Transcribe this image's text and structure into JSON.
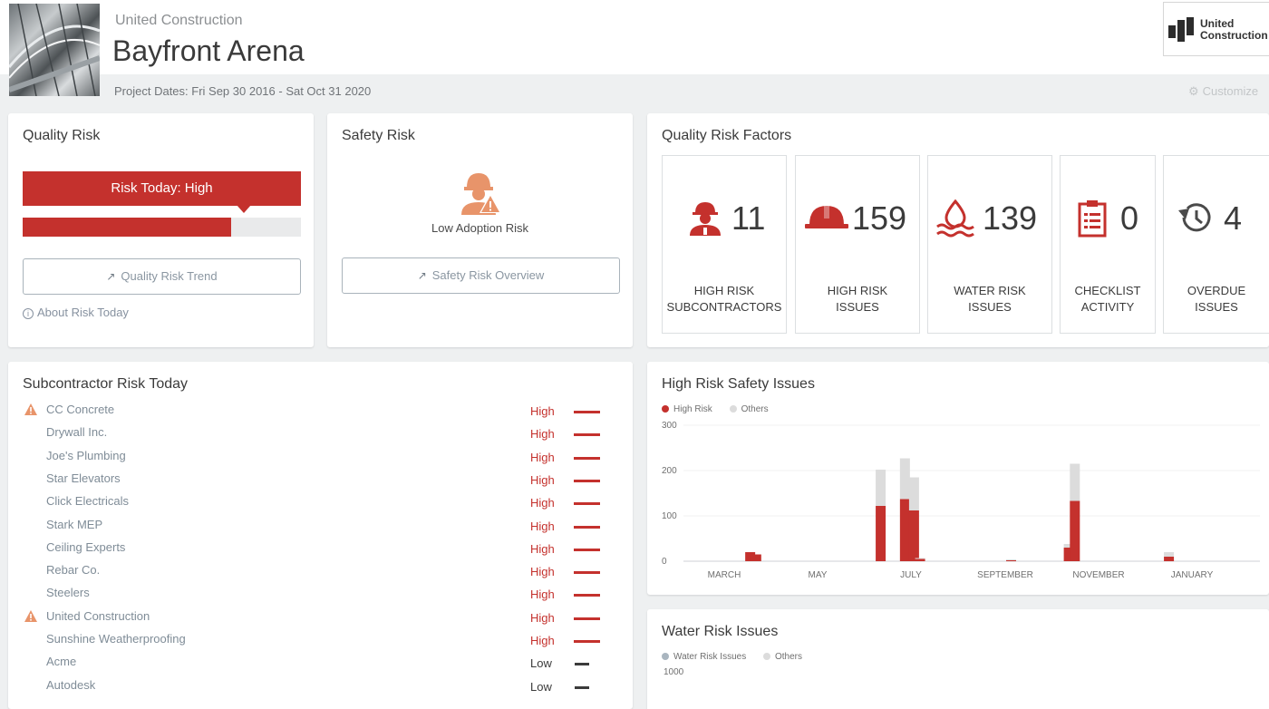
{
  "header": {
    "company": "United Construction",
    "project": "Bayfront Arena",
    "logo_text": "United\nConstruction",
    "project_dates": "Project Dates: Fri Sep 30 2016 - Sat Oct 31 2020",
    "customize_label": "Customize"
  },
  "quality_risk": {
    "title": "Quality Risk",
    "risk_today_label": "Risk Today: High",
    "risk_level_fraction": 0.8,
    "trend_button": "Quality Risk Trend",
    "about_link": "About Risk Today"
  },
  "safety_risk": {
    "title": "Safety Risk",
    "status": "Low Adoption Risk",
    "overview_button": "Safety Risk Overview"
  },
  "quality_factors": {
    "title": "Quality Risk Factors",
    "items": [
      {
        "value": "11",
        "label": "HIGH RISK\nSUBCONTRACTORS",
        "icon": "worker-icon"
      },
      {
        "value": "159",
        "label": "HIGH RISK\nISSUES",
        "icon": "hardhat-icon"
      },
      {
        "value": "139",
        "label": "WATER RISK\nISSUES",
        "icon": "water-drop-icon"
      },
      {
        "value": "0",
        "label": "CHECKLIST\nACTIVITY",
        "icon": "clipboard-icon"
      },
      {
        "value": "4",
        "label": "OVERDUE\nISSUES",
        "icon": "history-icon"
      }
    ]
  },
  "subcontractors": {
    "title": "Subcontractor Risk Today",
    "rows": [
      {
        "name": "CC Concrete",
        "level": "High",
        "warning": true
      },
      {
        "name": "Drywall Inc.",
        "level": "High",
        "warning": false
      },
      {
        "name": "Joe's Plumbing",
        "level": "High",
        "warning": false
      },
      {
        "name": "Star Elevators",
        "level": "High",
        "warning": false
      },
      {
        "name": "Click Electricals",
        "level": "High",
        "warning": false
      },
      {
        "name": "Stark MEP",
        "level": "High",
        "warning": false
      },
      {
        "name": "Ceiling Experts",
        "level": "High",
        "warning": false
      },
      {
        "name": "Rebar Co.",
        "level": "High",
        "warning": false
      },
      {
        "name": "Steelers",
        "level": "High",
        "warning": false
      },
      {
        "name": "United Construction",
        "level": "High",
        "warning": true
      },
      {
        "name": "Sunshine Weatherproofing",
        "level": "High",
        "warning": false
      },
      {
        "name": "Acme",
        "level": "Low",
        "warning": false
      },
      {
        "name": "Autodesk",
        "level": "Low",
        "warning": false
      }
    ]
  },
  "colors": {
    "high": "#c4312d",
    "low": "#3b3b3b",
    "others": "#dcdcdc",
    "water": "#a9b5bf",
    "warning": "#e8946a"
  },
  "chart_data": [
    {
      "type": "bar",
      "title": "High Risk Safety Issues",
      "stacked": true,
      "ylim": [
        0,
        300
      ],
      "yticks": [
        0,
        100,
        200,
        300
      ],
      "xtick_labels": [
        "MARCH",
        "MAY",
        "JULY",
        "SEPTEMBER",
        "NOVEMBER",
        "JANUARY"
      ],
      "legend": [
        "High Risk",
        "Others"
      ],
      "x_positions": [
        2.2,
        2.4,
        6.5,
        7.3,
        7.6,
        7.8,
        10.8,
        12.7,
        12.9,
        16.0
      ],
      "series": [
        {
          "name": "High Risk",
          "values": [
            20,
            15,
            122,
            137,
            112,
            5,
            2,
            30,
            133,
            10
          ]
        },
        {
          "name": "Others",
          "values": [
            0,
            0,
            80,
            90,
            73,
            2,
            2,
            8,
            82,
            10
          ]
        }
      ]
    },
    {
      "type": "bar",
      "title": "Water Risk Issues",
      "stacked": true,
      "yticks": [
        1000
      ],
      "legend": [
        "Water Risk Issues",
        "Others"
      ],
      "series": []
    }
  ]
}
